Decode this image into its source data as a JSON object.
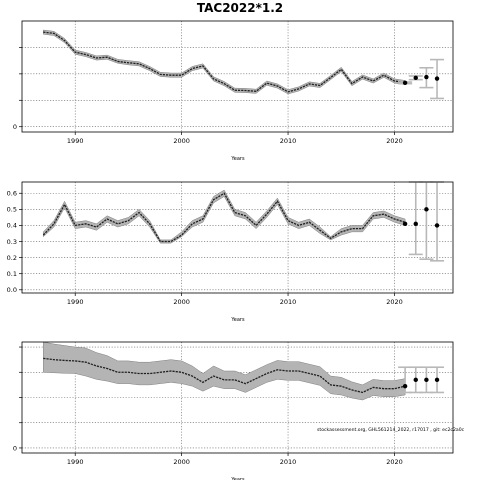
{
  "figure_title": "TAC2022*1.2",
  "chart_data": [
    {
      "type": "line",
      "panel": "top",
      "xlabel": "Years",
      "ylabel": "",
      "xlim": [
        1985,
        2025.5
      ],
      "ylim": [
        -2000,
        40000
      ],
      "x_ticks": [
        1990,
        2000,
        2010,
        2020
      ],
      "y_ticks": [
        0,
        10000,
        20000,
        30000
      ],
      "y_tick_labels": [
        "0",
        "",
        "",
        ""
      ],
      "grid": true,
      "series": [
        {
          "role": "historical_median",
          "x": [
            1987,
            1988,
            1989,
            1990,
            1991,
            1992,
            1993,
            1994,
            1995,
            1996,
            1997,
            1998,
            1999,
            2000,
            2001,
            2002,
            2003,
            2004,
            2005,
            2006,
            2007,
            2008,
            2009,
            2010,
            2011,
            2012,
            2013,
            2014,
            2015,
            2016,
            2017,
            2018,
            2019,
            2020,
            2021
          ],
          "values": [
            35800,
            35300,
            32600,
            28200,
            27300,
            26000,
            26300,
            24700,
            24200,
            23800,
            22000,
            19800,
            19500,
            19500,
            22000,
            23000,
            18100,
            16300,
            13800,
            13700,
            13400,
            16500,
            15400,
            13200,
            14300,
            16200,
            15600,
            18600,
            21700,
            16300,
            18800,
            17300,
            19500,
            17300,
            16700
          ],
          "lower": [
            35000,
            34500,
            31800,
            27400,
            26500,
            25200,
            25500,
            24000,
            23400,
            23000,
            21200,
            19000,
            18700,
            18700,
            21200,
            22200,
            17300,
            15500,
            13000,
            12900,
            12600,
            15700,
            14600,
            12400,
            13500,
            15400,
            14800,
            17800,
            20900,
            15500,
            18000,
            16500,
            18700,
            16500,
            15900
          ],
          "upper": [
            36600,
            36100,
            33400,
            29000,
            28100,
            26800,
            27100,
            25500,
            25000,
            24600,
            22800,
            20600,
            20300,
            20300,
            22800,
            23800,
            18900,
            17100,
            14600,
            14500,
            14200,
            17300,
            16200,
            14000,
            15100,
            17000,
            16400,
            19400,
            22500,
            17100,
            19600,
            18100,
            20300,
            18100,
            17500
          ]
        },
        {
          "role": "projection",
          "x": [
            2021,
            2022,
            2023,
            2024
          ],
          "values": [
            16600,
            18500,
            18800,
            18200
          ],
          "lower": [
            16300,
            17800,
            14800,
            10700
          ],
          "upper": [
            16900,
            19200,
            22300,
            25400
          ]
        }
      ]
    },
    {
      "type": "line",
      "panel": "middle",
      "xlabel": "Years",
      "ylabel": "",
      "xlim": [
        1985,
        2025.5
      ],
      "ylim": [
        -0.02,
        0.67
      ],
      "x_ticks": [
        1990,
        2000,
        2010,
        2020
      ],
      "y_ticks": [
        0.0,
        0.1,
        0.2,
        0.3,
        0.4,
        0.5,
        0.6
      ],
      "y_tick_labels": [
        "0.0",
        "0.1",
        "0.2",
        "0.3",
        "0.4",
        "0.5",
        "0.6"
      ],
      "grid": true,
      "series": [
        {
          "role": "historical_median",
          "x": [
            1987,
            1988,
            1989,
            1990,
            1991,
            1992,
            1993,
            1994,
            1995,
            1996,
            1997,
            1998,
            1999,
            2000,
            2001,
            2002,
            2003,
            2004,
            2005,
            2006,
            2007,
            2008,
            2009,
            2010,
            2011,
            2012,
            2013,
            2014,
            2015,
            2016,
            2017,
            2018,
            2019,
            2020,
            2021
          ],
          "values": [
            0.34,
            0.41,
            0.53,
            0.4,
            0.41,
            0.39,
            0.44,
            0.41,
            0.43,
            0.48,
            0.41,
            0.3,
            0.3,
            0.34,
            0.41,
            0.44,
            0.56,
            0.6,
            0.48,
            0.46,
            0.4,
            0.47,
            0.55,
            0.43,
            0.4,
            0.42,
            0.37,
            0.32,
            0.36,
            0.38,
            0.38,
            0.46,
            0.47,
            0.44,
            0.42
          ],
          "lower": [
            0.33,
            0.39,
            0.51,
            0.38,
            0.39,
            0.37,
            0.42,
            0.39,
            0.41,
            0.46,
            0.39,
            0.29,
            0.29,
            0.33,
            0.39,
            0.42,
            0.54,
            0.58,
            0.46,
            0.44,
            0.38,
            0.45,
            0.53,
            0.41,
            0.38,
            0.4,
            0.35,
            0.31,
            0.34,
            0.36,
            0.36,
            0.44,
            0.45,
            0.42,
            0.4
          ],
          "upper": [
            0.36,
            0.43,
            0.55,
            0.42,
            0.43,
            0.41,
            0.46,
            0.43,
            0.45,
            0.5,
            0.43,
            0.31,
            0.31,
            0.36,
            0.43,
            0.46,
            0.58,
            0.62,
            0.5,
            0.48,
            0.42,
            0.49,
            0.57,
            0.45,
            0.42,
            0.44,
            0.39,
            0.33,
            0.38,
            0.4,
            0.4,
            0.48,
            0.49,
            0.46,
            0.44
          ]
        },
        {
          "role": "projection",
          "x": [
            2021,
            2022,
            2023,
            2024
          ],
          "values": [
            0.41,
            0.41,
            0.5,
            0.4
          ],
          "lower": [
            0.41,
            0.22,
            0.19,
            0.18
          ],
          "upper": [
            0.41,
            0.67,
            0.67,
            0.67
          ]
        }
      ]
    },
    {
      "type": "line",
      "panel": "bottom",
      "xlabel": "Years",
      "ylabel": "",
      "xlim": [
        1985,
        2025.5
      ],
      "ylim": [
        -2000,
        42000
      ],
      "x_ticks": [
        1990,
        2000,
        2010,
        2020
      ],
      "y_ticks": [
        0,
        10000,
        20000,
        30000,
        40000
      ],
      "y_tick_labels": [
        "0",
        "",
        "",
        "",
        ""
      ],
      "grid": true,
      "series": [
        {
          "role": "historical_median",
          "x": [
            1987,
            1988,
            1989,
            1990,
            1991,
            1992,
            1993,
            1994,
            1995,
            1996,
            1997,
            1998,
            1999,
            2000,
            2001,
            2002,
            2003,
            2004,
            2005,
            2006,
            2007,
            2008,
            2009,
            2010,
            2011,
            2012,
            2013,
            2014,
            2015,
            2016,
            2017,
            2018,
            2019,
            2020,
            2021
          ],
          "values": [
            35500,
            35000,
            34700,
            34500,
            34000,
            32500,
            31500,
            30000,
            30000,
            29500,
            29500,
            30000,
            30500,
            30000,
            28500,
            26000,
            28500,
            27000,
            27000,
            25500,
            27500,
            29500,
            31000,
            30500,
            30500,
            29500,
            28500,
            25000,
            24500,
            23000,
            22000,
            24000,
            23500,
            23500,
            24500
          ],
          "lower": [
            30000,
            29800,
            29600,
            29500,
            28500,
            27200,
            26500,
            25500,
            25500,
            25000,
            25000,
            25500,
            26000,
            25500,
            24500,
            22500,
            24500,
            23500,
            23500,
            22000,
            24000,
            26000,
            27200,
            26800,
            26800,
            25800,
            24800,
            21500,
            21000,
            19800,
            19000,
            20800,
            20300,
            20300,
            21000
          ],
          "upper": [
            42000,
            41200,
            40600,
            40000,
            39600,
            37800,
            36600,
            34500,
            34500,
            34000,
            34000,
            34500,
            35000,
            34500,
            32500,
            29500,
            32500,
            30500,
            30500,
            29000,
            31000,
            33000,
            34700,
            34200,
            34200,
            33200,
            32200,
            28500,
            28000,
            26200,
            25000,
            27200,
            26700,
            26700,
            27500
          ]
        },
        {
          "role": "projection",
          "x": [
            2021,
            2022,
            2023,
            2024
          ],
          "values": [
            24500,
            27000,
            27000,
            27000
          ],
          "lower": [
            22000,
            22000,
            22000,
            22000
          ],
          "upper": [
            32000,
            32000,
            32000,
            32000
          ]
        }
      ],
      "annotation": "stockassessment.org, GHL561214_2022, r17017 , git: ec2c2a0c"
    }
  ],
  "colors": {
    "median_line": "#202020",
    "band_fill": "#b4b4b4",
    "band_edge": "#808080",
    "error_bar": "#b8b8b8",
    "point": "#000000",
    "grid": "#666666",
    "axes": "#000000"
  }
}
